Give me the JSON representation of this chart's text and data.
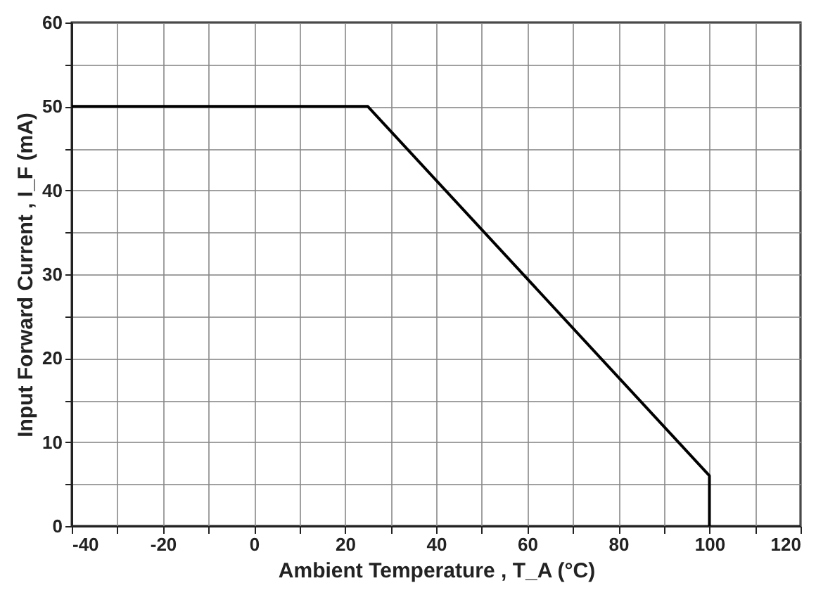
{
  "chart_data": {
    "type": "line",
    "xlabel": "Ambient Temperature , T_A (°C)",
    "ylabel": "Input Forward Current , I_F (mA)",
    "x": [
      -40,
      25,
      100,
      100
    ],
    "series": [
      {
        "color": "#000000",
        "values": [
          50,
          50,
          6,
          0
        ]
      }
    ],
    "xlim": [
      -40,
      120
    ],
    "xticks": [
      -40,
      {
        "value": -30,
        "label": null
      },
      -20,
      {
        "value": -10,
        "label": null
      },
      0,
      {
        "value": 10,
        "label": null
      },
      20,
      {
        "value": 30,
        "label": null
      },
      40,
      {
        "value": 50,
        "label": null
      },
      60,
      {
        "value": 70,
        "label": null
      },
      80,
      {
        "value": 90,
        "label": null
      },
      100,
      {
        "value": 110,
        "label": null
      },
      120
    ],
    "ylim": [
      0,
      60
    ],
    "yticks": [
      0,
      {
        "value": 5,
        "label": null
      },
      10,
      {
        "value": 15,
        "label": null
      },
      20,
      {
        "value": 25,
        "label": null
      },
      30,
      {
        "value": 35,
        "label": null
      },
      40,
      {
        "value": 45,
        "label": null
      },
      50,
      {
        "value": 55,
        "label": null
      },
      60
    ],
    "grid": true,
    "marker": "none",
    "line_style": "solid"
  }
}
